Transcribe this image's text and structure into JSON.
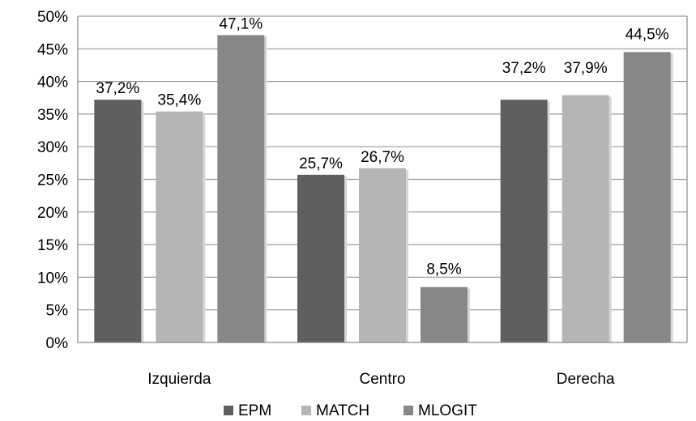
{
  "chart_data": {
    "type": "bar",
    "categories": [
      "Izquierda",
      "Centro",
      "Derecha"
    ],
    "series": [
      {
        "name": "EPM",
        "values": [
          37.2,
          25.7,
          37.2
        ],
        "labels": [
          "37,2%",
          "25,7%",
          "37,2%"
        ],
        "color": "#5f5f5f"
      },
      {
        "name": "MATCH",
        "values": [
          35.4,
          26.7,
          37.9
        ],
        "labels": [
          "35,4%",
          "26,7%",
          "37,9%"
        ],
        "color": "#b5b5b5"
      },
      {
        "name": "MLOGIT",
        "values": [
          47.1,
          8.5,
          44.5
        ],
        "labels": [
          "47,1%",
          "8,5%",
          "44,5%"
        ],
        "color": "#878787"
      }
    ],
    "ylim": [
      0,
      50
    ],
    "yticks": [
      0,
      5,
      10,
      15,
      20,
      25,
      30,
      35,
      40,
      45,
      50
    ],
    "ytick_labels": [
      "0%",
      "5%",
      "10%",
      "15%",
      "20%",
      "25%",
      "30%",
      "35%",
      "40%",
      "45%",
      "50%"
    ],
    "grid": true,
    "legend_position": "bottom",
    "title": "",
    "xlabel": "",
    "ylabel": ""
  }
}
